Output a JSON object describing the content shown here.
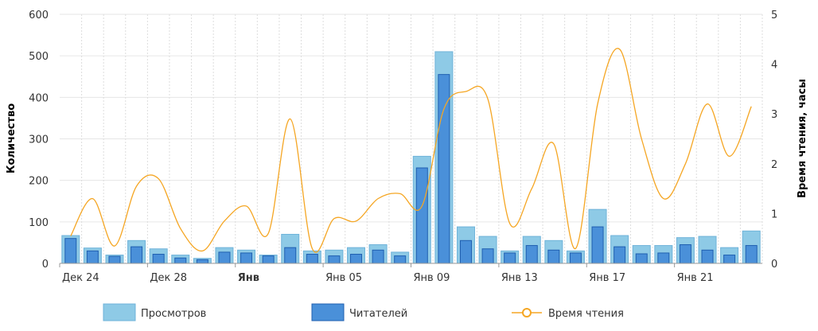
{
  "chart_data": {
    "type": "bar",
    "title": "",
    "ylabel": "Количество",
    "y2label": "Время чтения, часы",
    "ylim": [
      0,
      600
    ],
    "y2lim": [
      0,
      5
    ],
    "yticks": [
      0,
      100,
      200,
      300,
      400,
      500,
      600
    ],
    "y2ticks": [
      0,
      1,
      2,
      3,
      4,
      5
    ],
    "grid": true,
    "legend_position": "bottom",
    "x_labels": [
      {
        "index": 0,
        "label": "Дек 24",
        "bold": false
      },
      {
        "index": 4,
        "label": "Дек 28",
        "bold": false
      },
      {
        "index": 8,
        "label": "Янв",
        "bold": true
      },
      {
        "index": 12,
        "label": "Янв 05",
        "bold": false
      },
      {
        "index": 16,
        "label": "Янв 09",
        "bold": false
      },
      {
        "index": 20,
        "label": "Янв 13",
        "bold": false
      },
      {
        "index": 24,
        "label": "Янв 17",
        "bold": false
      },
      {
        "index": 28,
        "label": "Янв 21",
        "bold": false
      }
    ],
    "series": [
      {
        "name": "Просмотров",
        "kind": "bar",
        "axis": "left",
        "color": "#8ecae6",
        "stroke": "#6fb3d9",
        "values": [
          67,
          37,
          20,
          55,
          35,
          20,
          12,
          38,
          32,
          20,
          70,
          30,
          32,
          38,
          45,
          27,
          258,
          510,
          88,
          65,
          30,
          65,
          55,
          30,
          130,
          67,
          43,
          43,
          62,
          65,
          38,
          78
        ]
      },
      {
        "name": "Читателей",
        "kind": "bar",
        "axis": "left",
        "color": "#4a90d9",
        "stroke": "#1f5fb0",
        "values": [
          60,
          30,
          17,
          40,
          22,
          13,
          9,
          27,
          25,
          18,
          38,
          22,
          18,
          22,
          32,
          18,
          230,
          455,
          55,
          35,
          25,
          43,
          32,
          25,
          88,
          40,
          23,
          25,
          45,
          32,
          20,
          43
        ]
      },
      {
        "name": "Время чтения",
        "kind": "line",
        "axis": "right",
        "color": "#f5a623",
        "values": [
          0.55,
          1.3,
          0.35,
          1.55,
          1.7,
          0.7,
          0.25,
          0.85,
          1.15,
          0.6,
          2.9,
          0.3,
          0.9,
          0.85,
          1.3,
          1.4,
          1.15,
          3.1,
          3.45,
          3.3,
          0.8,
          1.5,
          2.4,
          0.3,
          3.2,
          4.3,
          2.5,
          1.3,
          2.0,
          3.2,
          2.15,
          3.15
        ]
      }
    ]
  }
}
